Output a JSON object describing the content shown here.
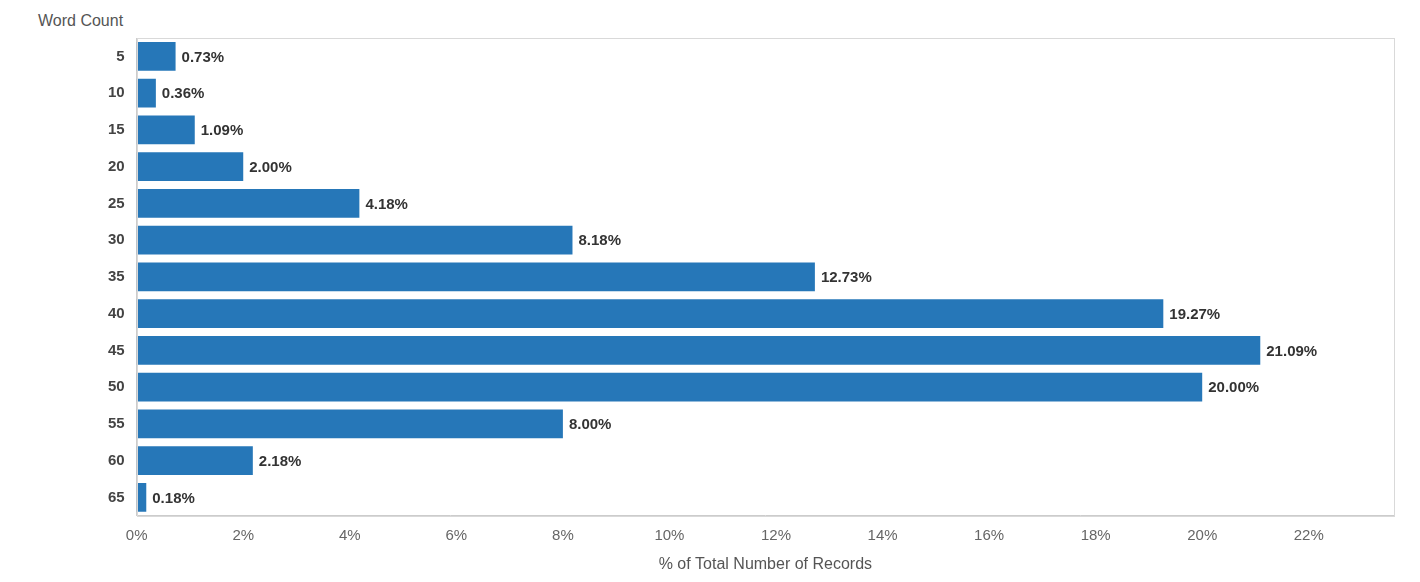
{
  "chart_data": {
    "type": "bar",
    "orientation": "horizontal",
    "ylabel": "Word Count",
    "xlabel": "% of Total Number of Records",
    "categories": [
      "5",
      "10",
      "15",
      "20",
      "25",
      "30",
      "35",
      "40",
      "45",
      "50",
      "55",
      "60",
      "65"
    ],
    "values": [
      0.73,
      0.36,
      1.09,
      2.0,
      4.18,
      8.18,
      12.73,
      19.27,
      21.09,
      20.0,
      8.0,
      2.18,
      0.18
    ],
    "value_labels": [
      "0.73%",
      "0.36%",
      "1.09%",
      "2.00%",
      "4.18%",
      "8.18%",
      "12.73%",
      "19.27%",
      "21.09%",
      "20.00%",
      "8.00%",
      "2.18%",
      "0.18%"
    ],
    "color": "#2677b8",
    "xlim": [
      0,
      23.6
    ],
    "xticks": [
      {
        "value": 0,
        "label": "0%"
      },
      {
        "value": 2,
        "label": "2%"
      },
      {
        "value": 4,
        "label": "4%"
      },
      {
        "value": 6,
        "label": "6%"
      },
      {
        "value": 8,
        "label": "8%"
      },
      {
        "value": 10,
        "label": "10%"
      },
      {
        "value": 12,
        "label": "12%"
      },
      {
        "value": 14,
        "label": "14%"
      },
      {
        "value": 16,
        "label": "16%"
      },
      {
        "value": 18,
        "label": "18%"
      },
      {
        "value": 20,
        "label": "20%"
      },
      {
        "value": 22,
        "label": "22%"
      }
    ],
    "grid": false,
    "data_labels": true
  }
}
